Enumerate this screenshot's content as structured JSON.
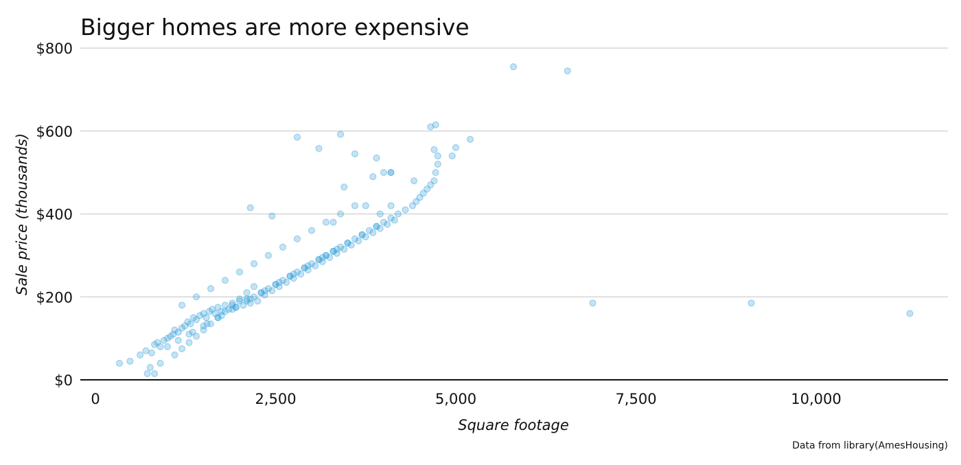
{
  "chart_data": {
    "type": "scatter",
    "title": "Bigger homes are more expensive",
    "xlabel": "Square footage",
    "ylabel": "Sale price (thousands)",
    "caption": "Data from library(AmesHousing)",
    "xlim": [
      -100,
      11800
    ],
    "ylim": [
      0,
      800
    ],
    "x_ticks": [
      0,
      2500,
      5000,
      7500,
      10000
    ],
    "x_tick_labels": [
      "0",
      "2,500",
      "5,000",
      "7,500",
      "10,000"
    ],
    "y_ticks": [
      0,
      200,
      400,
      600,
      800
    ],
    "y_tick_labels": [
      "$0",
      "$200",
      "$400",
      "$600",
      "$800"
    ],
    "grid": "horizontal",
    "legend": "none",
    "point_color": "#2b9cd8",
    "series": [
      {
        "x": [
          334,
          480,
          620,
          700,
          780,
          820,
          860,
          900,
          950,
          1000,
          1040,
          1080,
          1100,
          1150,
          1200,
          1240,
          1280,
          1320,
          1360,
          1400,
          1450,
          1500,
          1540,
          1580,
          1620,
          1660,
          1700,
          1750,
          1800,
          1850,
          1900,
          1950,
          2000,
          2050,
          2100,
          2150,
          2200,
          2250,
          2300,
          2350,
          2400,
          2450,
          2500,
          2550,
          2600,
          2650,
          2700,
          2750,
          2800,
          2850,
          2900,
          2950,
          3000,
          3050,
          3100,
          3150,
          3200,
          3250,
          3300,
          3350,
          3400,
          3450,
          3500,
          3550,
          3600,
          3650,
          3700,
          3750,
          3800,
          3850,
          3900,
          3950,
          4000,
          4050,
          4100,
          4150,
          4200,
          4300,
          4400,
          4450,
          4500,
          4550,
          4600,
          4650,
          4700,
          4720,
          4750,
          4950,
          5000,
          5200,
          5800,
          6550,
          6900,
          9100,
          11300,
          720,
          820,
          760,
          900,
          1100,
          1200,
          1300,
          1400,
          1500,
          1600,
          1700,
          1800,
          1900,
          2000,
          2100,
          2200,
          1300,
          1500,
          1700,
          1900,
          2100,
          2300,
          2500,
          2700,
          2900,
          3100,
          3300,
          3500,
          3700,
          3900,
          1200,
          1400,
          1600,
          1800,
          2000,
          2200,
          2400,
          2600,
          2800,
          3000,
          3200,
          3400,
          3600,
          1000,
          1150,
          1350,
          1550,
          1750,
          1950,
          2150,
          2350,
          2550,
          2750,
          2950,
          3150,
          3350,
          2800,
          3100,
          3400,
          3600,
          3900,
          4100,
          3450,
          3850,
          4000,
          4100,
          4650,
          4720,
          4700,
          4750,
          4420,
          4100,
          3950,
          3750,
          3300,
          3200,
          2150,
          2450
        ],
        "y": [
          40,
          45,
          60,
          70,
          65,
          85,
          90,
          80,
          95,
          100,
          105,
          110,
          120,
          115,
          125,
          130,
          140,
          135,
          150,
          145,
          155,
          160,
          150,
          165,
          170,
          160,
          175,
          165,
          180,
          170,
          185,
          175,
          190,
          180,
          195,
          185,
          200,
          190,
          210,
          205,
          220,
          215,
          230,
          225,
          240,
          235,
          250,
          245,
          260,
          255,
          270,
          265,
          280,
          275,
          290,
          285,
          300,
          295,
          310,
          305,
          320,
          315,
          330,
          325,
          340,
          335,
          350,
          345,
          360,
          355,
          370,
          365,
          380,
          375,
          390,
          385,
          400,
          410,
          420,
          430,
          440,
          450,
          460,
          470,
          480,
          500,
          520,
          540,
          560,
          580,
          755,
          745,
          185,
          185,
          160,
          15,
          15,
          30,
          40,
          60,
          75,
          90,
          105,
          120,
          135,
          150,
          165,
          180,
          195,
          210,
          225,
          110,
          130,
          150,
          170,
          190,
          210,
          230,
          250,
          270,
          290,
          310,
          330,
          350,
          370,
          180,
          200,
          220,
          240,
          260,
          280,
          300,
          320,
          340,
          360,
          380,
          400,
          420,
          80,
          95,
          115,
          135,
          155,
          175,
          195,
          215,
          235,
          255,
          275,
          295,
          315,
          585,
          558,
          592,
          545,
          535,
          500,
          465,
          490,
          500,
          500,
          610,
          615,
          555,
          540,
          480,
          420,
          400,
          420,
          380,
          300,
          415,
          395
        ]
      }
    ]
  }
}
